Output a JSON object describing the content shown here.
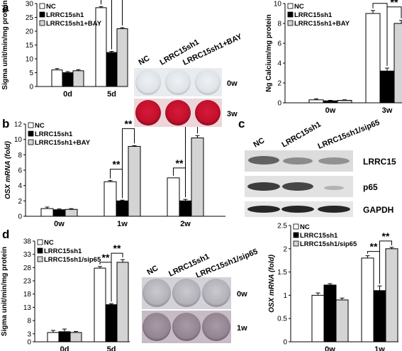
{
  "chart_data": [
    {
      "panel_label": "a",
      "type": "bar",
      "ylabel": "Sigma unit/min/mg protein",
      "ylim": [
        0,
        30
      ],
      "yticks": [
        0,
        5,
        10,
        15,
        20,
        25,
        30
      ],
      "categories": [
        "0d",
        "5d"
      ],
      "series": [
        {
          "name": "NC",
          "color": "#ffffff",
          "values": [
            6.0,
            28.5
          ],
          "errors": [
            0.5,
            0.4
          ]
        },
        {
          "name": "LRRC15sh1",
          "color": "#000000",
          "values": [
            5.0,
            12.3
          ],
          "errors": [
            0.4,
            0.4
          ]
        },
        {
          "name": "LRRC15sh1+BAY",
          "color": "#d4d4d4",
          "values": [
            5.7,
            20.9
          ],
          "errors": [
            0.4,
            0.4
          ]
        }
      ],
      "significance": [
        "**",
        "**"
      ],
      "legend": "top-left"
    },
    {
      "panel_label": "",
      "type": "bar",
      "ylabel": "Ng Calcium/mg protein",
      "ylim": [
        0,
        10
      ],
      "yticks": [
        0,
        2,
        4,
        6,
        8,
        10
      ],
      "categories": [
        "0w",
        "3w"
      ],
      "series": [
        {
          "name": "NC",
          "color": "#ffffff",
          "values": [
            0.3,
            9.0
          ],
          "errors": [
            0.1,
            0.3
          ]
        },
        {
          "name": "LRRC15sh1",
          "color": "#000000",
          "values": [
            0.2,
            3.2
          ],
          "errors": [
            0.05,
            0.3
          ]
        },
        {
          "name": "LRRC15sh1+BAY",
          "color": "#d4d4d4",
          "values": [
            0.25,
            8.0
          ],
          "errors": [
            0.05,
            0.3
          ]
        }
      ],
      "significance": [
        "**",
        "**"
      ],
      "legend": "top-left"
    },
    {
      "panel_label": "b",
      "type": "bar",
      "ylabel": "OSX mRNA (fold)",
      "ylim": [
        0,
        12
      ],
      "yticks": [
        0,
        2,
        4,
        6,
        8,
        10,
        12
      ],
      "categories": [
        "0w",
        "1w",
        "2w"
      ],
      "series": [
        {
          "name": "NC",
          "color": "#ffffff",
          "values": [
            1.0,
            4.5,
            5.0
          ],
          "errors": [
            0.2,
            0.15,
            0.0
          ]
        },
        {
          "name": "LRRC15sh1",
          "color": "#000000",
          "values": [
            0.85,
            2.0,
            2.0
          ],
          "errors": [
            0.1,
            0.1,
            0.2
          ]
        },
        {
          "name": "LRRC15sh1+BAY",
          "color": "#d4d4d4",
          "values": [
            0.9,
            9.1,
            10.2
          ],
          "errors": [
            0.1,
            0.1,
            0.3
          ]
        }
      ],
      "significance": [
        "**",
        "**",
        "**",
        "**"
      ],
      "legend": "top-left"
    },
    {
      "panel_label": "d",
      "type": "bar",
      "ylabel": "Sigma unit/min/mg protein",
      "ylim": [
        0,
        38
      ],
      "yticks": [
        0,
        3,
        8,
        13,
        18,
        23,
        28,
        33,
        38
      ],
      "categories": [
        "0d",
        "5d"
      ],
      "series": [
        {
          "name": "NC",
          "color": "#ffffff",
          "values": [
            3.5,
            27.8
          ],
          "errors": [
            0.8,
            0.6
          ]
        },
        {
          "name": "LRRC15sh1",
          "color": "#000000",
          "values": [
            3.8,
            14.0
          ],
          "errors": [
            1.0,
            0.4
          ]
        },
        {
          "name": "LRRC15sh1/sip65",
          "color": "#d4d4d4",
          "values": [
            3.5,
            30.0
          ],
          "errors": [
            0.4,
            1.0
          ]
        }
      ],
      "significance": [
        "**",
        "**"
      ],
      "legend": "top-left"
    },
    {
      "panel_label": "",
      "type": "bar",
      "ylabel": "OSX mRNA (fold)",
      "ylim": [
        0,
        2.5
      ],
      "yticks": [
        0,
        0.5,
        1,
        1.5,
        2,
        2.5
      ],
      "categories": [
        "0w",
        "1w"
      ],
      "series": [
        {
          "name": "NC",
          "color": "#ffffff",
          "values": [
            1.0,
            1.8
          ],
          "errors": [
            0.05,
            0.05
          ]
        },
        {
          "name": "LRRC15sh1",
          "color": "#000000",
          "values": [
            1.22,
            1.1
          ],
          "errors": [
            0.03,
            0.1
          ]
        },
        {
          "name": "LRRC15sh1/sip65",
          "color": "#d4d4d4",
          "values": [
            0.9,
            2.0
          ],
          "errors": [
            0.04,
            0.03
          ]
        }
      ],
      "significance": [
        "**",
        "**"
      ],
      "legend": "top-left"
    }
  ],
  "panel_labels": {
    "a": "a",
    "b": "b",
    "c": "c",
    "d": "d"
  },
  "photo_a": {
    "columns": [
      "NC",
      "LRRC15sh1",
      "LRRC15sh1+BAY"
    ],
    "rows": [
      "0w",
      "3w"
    ]
  },
  "photo_d": {
    "columns": [
      "NC",
      "LRRC15sh1",
      "LRRC15sh1/sip65"
    ],
    "rows": [
      "0w",
      "1w"
    ]
  },
  "western_blot": {
    "columns": [
      "NC",
      "LRRC15sh1",
      "LRRC15sh1/sip65"
    ],
    "rows": [
      "LRRC15",
      "p65",
      "GAPDH"
    ]
  },
  "colors": {
    "nc": "#ffffff",
    "sh1": "#000000",
    "treat": "#d4d4d4",
    "alizarin_red": "#c8102e"
  }
}
